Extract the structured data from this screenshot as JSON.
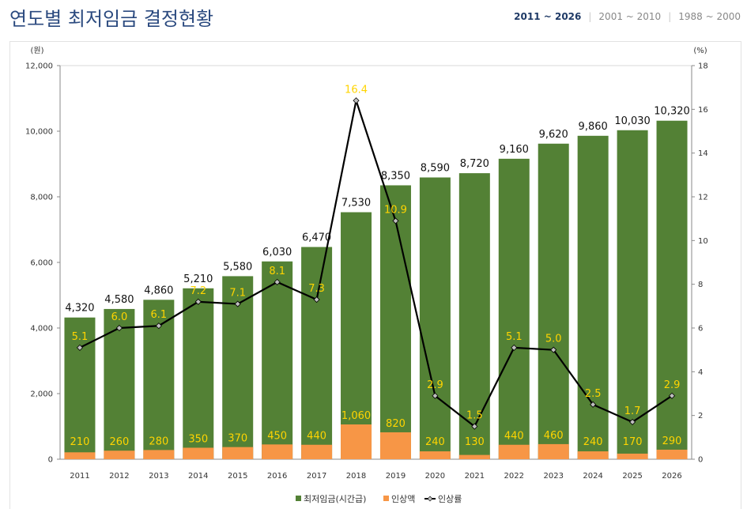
{
  "header": {
    "title": "연도별 최저임금 결정현황",
    "tabs": [
      "2011 ~ 2026",
      "2001 ~ 2010",
      "1988 ~ 2000"
    ],
    "active_tab": "2011 ~ 2026"
  },
  "chart_data": {
    "type": "bar",
    "title": "연도별 최저임금 결정현황",
    "categories": [
      "2011",
      "2012",
      "2013",
      "2014",
      "2015",
      "2016",
      "2017",
      "2018",
      "2019",
      "2020",
      "2021",
      "2022",
      "2023",
      "2024",
      "2025",
      "2026"
    ],
    "series": [
      {
        "name": "최저임금(시간급)",
        "kind": "bar",
        "axis": "left",
        "color": "#538135",
        "values": [
          4320,
          4580,
          4860,
          5210,
          5580,
          6030,
          6470,
          7530,
          8350,
          8590,
          8720,
          9160,
          9620,
          9860,
          10030,
          10320
        ],
        "labels": [
          "4,320",
          "4,580",
          "4,860",
          "5,210",
          "5,580",
          "6,030",
          "6,470",
          "7,530",
          "8,350",
          "8,590",
          "8,720",
          "9,160",
          "9,620",
          "9,860",
          "10,030",
          "10,320"
        ]
      },
      {
        "name": "인상액",
        "kind": "bar",
        "axis": "left",
        "color": "#f79646",
        "values": [
          210,
          260,
          280,
          350,
          370,
          450,
          440,
          1060,
          820,
          240,
          130,
          440,
          460,
          240,
          170,
          290
        ],
        "labels": [
          "210",
          "260",
          "280",
          "350",
          "370",
          "450",
          "440",
          "1,060",
          "820",
          "240",
          "130",
          "440",
          "460",
          "240",
          "170",
          "290"
        ]
      },
      {
        "name": "인상률",
        "kind": "line",
        "axis": "right",
        "color": "#000000",
        "values": [
          5.1,
          6.0,
          6.1,
          7.2,
          7.1,
          8.1,
          7.3,
          16.4,
          10.9,
          2.9,
          1.5,
          5.1,
          5.0,
          2.5,
          1.7,
          2.9
        ],
        "labels": [
          "5.1",
          "6.0",
          "6.1",
          "7.2",
          "7.1",
          "8.1",
          "7.3",
          "16.4",
          "10.9",
          "2.9",
          "1.5",
          "5.1",
          "5.0",
          "2.5",
          "1.7",
          "2.9"
        ]
      }
    ],
    "y_left": {
      "unit": "(원)",
      "min": 0,
      "max": 12000,
      "ticks": [
        0,
        2000,
        4000,
        6000,
        8000,
        10000,
        12000
      ],
      "tick_labels": [
        "0",
        "2,000",
        "4,000",
        "6,000",
        "8,000",
        "10,000",
        "12,000"
      ]
    },
    "y_right": {
      "unit": "(%)",
      "min": 0,
      "max": 18,
      "ticks": [
        0,
        2,
        4,
        6,
        8,
        10,
        12,
        14,
        16,
        18
      ],
      "tick_labels": [
        "0",
        "2",
        "4",
        "6",
        "8",
        "10",
        "12",
        "14",
        "16",
        "18"
      ]
    },
    "legend": {
      "position": "bottom",
      "items": [
        "최저임금(시간급)",
        "인상액",
        "인상률"
      ]
    }
  }
}
